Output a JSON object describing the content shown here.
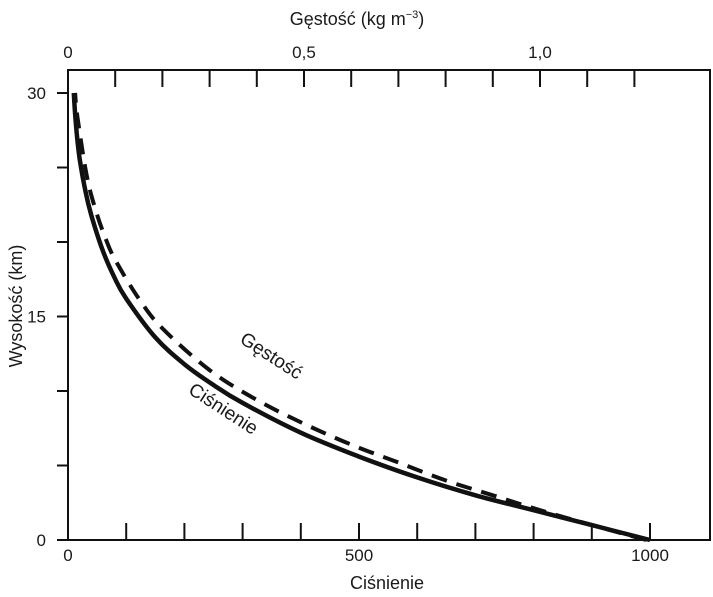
{
  "chart_data": {
    "type": "line",
    "x_bottom": {
      "label": "Ciśnienie",
      "range": [
        0,
        1100
      ],
      "tick_labels": [
        {
          "value": 0,
          "text": "0"
        },
        {
          "value": 500,
          "text": "500"
        },
        {
          "value": 1000,
          "text": "1000"
        }
      ],
      "minor_tick_step": 100
    },
    "x_top": {
      "label": "Gęstość (kg m",
      "label_superscript": "−3",
      "label_close": ")",
      "range": [
        0,
        1.3
      ],
      "tick_labels": [
        {
          "value": 0,
          "text": "0"
        },
        {
          "value": 0.5,
          "text": "0,5"
        },
        {
          "value": 1.0,
          "text": "1,0"
        }
      ],
      "minor_tick_step": 0.1
    },
    "y": {
      "label": "Wysokość (km)",
      "range": [
        0,
        30
      ],
      "tick_labels": [
        {
          "value": 0,
          "text": "0"
        },
        {
          "value": 15,
          "text": "15"
        },
        {
          "value": 30,
          "text": "30"
        }
      ],
      "minor_tick_step": 5
    },
    "series": [
      {
        "name": "Ciśnienie",
        "axis": "bottom",
        "style": "solid",
        "x": [
          1000,
          900,
          800,
          700,
          600,
          500,
          400,
          300,
          250,
          200,
          150,
          100,
          80,
          60,
          40,
          30,
          20,
          15,
          12,
          10
        ],
        "y": [
          0,
          1,
          2,
          3,
          4.2,
          5.6,
          7.2,
          9.2,
          10.4,
          11.8,
          13.6,
          16.2,
          17.6,
          19.4,
          21.8,
          23.4,
          25.6,
          27.3,
          28.7,
          30
        ]
      },
      {
        "name": "Gęstość",
        "axis": "top",
        "style": "dashed",
        "x": [
          1.225,
          1.11,
          1.0,
          0.9,
          0.8,
          0.7,
          0.6,
          0.5,
          0.4,
          0.3,
          0.2,
          0.15,
          0.1,
          0.08,
          0.06,
          0.04,
          0.02,
          0.015
        ],
        "y": [
          0,
          1,
          2,
          3,
          4,
          5.2,
          6.4,
          7.8,
          9.4,
          11.4,
          14.2,
          16.2,
          18.8,
          20.2,
          22,
          24.4,
          28.4,
          30
        ]
      }
    ],
    "annotations": [
      {
        "text": "Gęstość",
        "series": "Gęstość"
      },
      {
        "text": "Ciśnienie",
        "series": "Ciśnienie"
      }
    ],
    "grid": false,
    "legend": "none"
  }
}
